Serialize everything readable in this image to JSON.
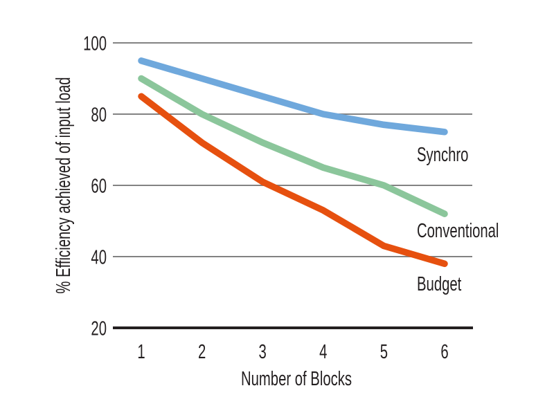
{
  "figure": {
    "background_color": "#ffffff",
    "text_color": "#231f20",
    "grid_color": "#828282",
    "axis_color": "#231f20"
  },
  "chart_data": {
    "type": "line",
    "title": "",
    "xlabel": "Number of Blocks",
    "ylabel": "% Efficiency achieved of input load",
    "x": [
      1,
      2,
      3,
      4,
      5,
      6
    ],
    "x_tick_labels": [
      "1",
      "2",
      "3",
      "4",
      "5",
      "6"
    ],
    "y_tick_labels": [
      "100",
      "80",
      "60",
      "40",
      "20"
    ],
    "y_tick_values": [
      100,
      80,
      60,
      40,
      20
    ],
    "ylim": [
      20,
      100
    ],
    "grid": "horizontal-only",
    "legend_position": "inline-labels-right-of-line-ends",
    "series": [
      {
        "name": "Synchro",
        "color": "#6fa8dc",
        "values": [
          95,
          90,
          85,
          80,
          77,
          75
        ]
      },
      {
        "name": "Conventional",
        "color": "#8bc69b",
        "values": [
          90,
          80,
          72,
          65,
          60,
          52
        ]
      },
      {
        "name": "Budget",
        "color": "#e6500f",
        "values": [
          85,
          72,
          61,
          53,
          43,
          38
        ]
      }
    ]
  }
}
